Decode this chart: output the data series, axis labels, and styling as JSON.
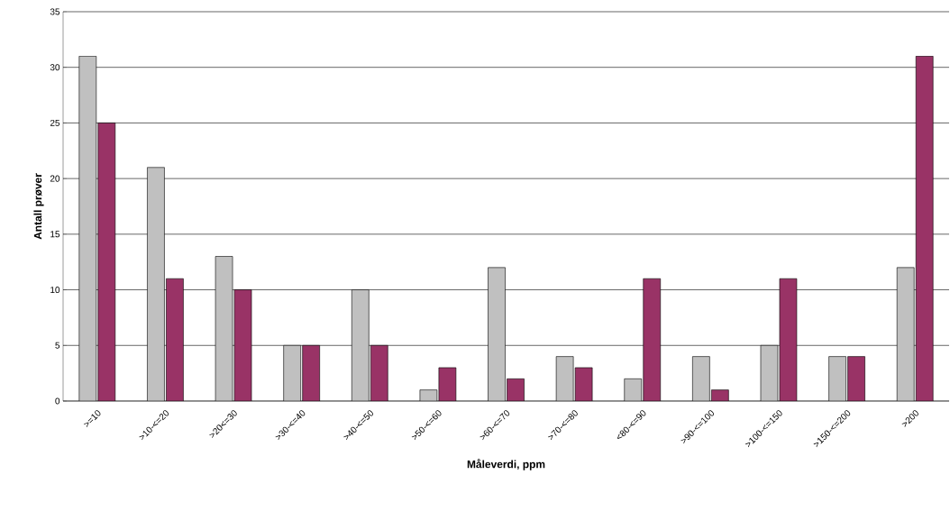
{
  "chart_data": {
    "type": "bar",
    "xlabel": "Måleverdi, ppm",
    "ylabel": "Antall prøver",
    "categories": [
      ">=10",
      ">10-<=20",
      ">20<=30",
      ">30-<=40",
      ">40-<=50",
      ">50-<=60",
      ">60-<=70",
      ">70-<=80",
      "<80-<=90",
      ">90-<=100",
      ">100-<=150",
      ">150-<=200",
      ">200"
    ],
    "series": [
      {
        "color": "#c0c0c0",
        "values": [
          31,
          21,
          13,
          5,
          10,
          1,
          12,
          4,
          2,
          4,
          5,
          4,
          12
        ]
      },
      {
        "color": "#993366",
        "values": [
          25,
          11,
          10,
          5,
          5,
          3,
          2,
          3,
          11,
          1,
          11,
          4,
          31
        ]
      }
    ],
    "ylim": [
      0,
      35
    ],
    "yticks": [
      0,
      5,
      10,
      15,
      20,
      25,
      30,
      35
    ],
    "grid": "y"
  }
}
